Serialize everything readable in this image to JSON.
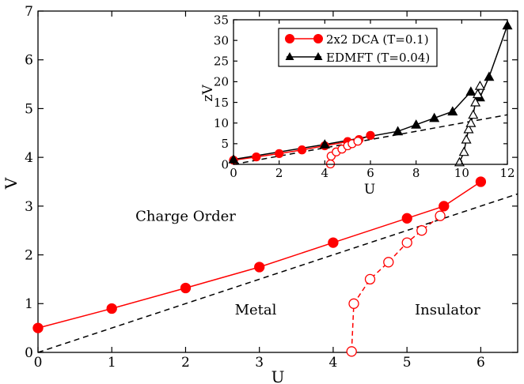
{
  "chart_data": [
    {
      "id": "main",
      "type": "line",
      "title": "",
      "xlabel": "U",
      "ylabel": "V",
      "xlim": [
        0,
        6.5
      ],
      "ylim": [
        0,
        7
      ],
      "xticks": [
        0,
        1,
        2,
        3,
        4,
        5,
        6
      ],
      "yticks": [
        0,
        1,
        2,
        3,
        4,
        5,
        6,
        7
      ],
      "grid": false,
      "series": [
        {
          "style": "red-solid-filled-circles",
          "color": "#ff0000",
          "points": [
            [
              0,
              0.5
            ],
            [
              1,
              0.9
            ],
            [
              2,
              1.32
            ],
            [
              3,
              1.75
            ],
            [
              4,
              2.25
            ],
            [
              5,
              2.75
            ],
            [
              5.5,
              3.0
            ],
            [
              6,
              3.5
            ]
          ]
        },
        {
          "style": "red-dashed-open-circles",
          "color": "#ff0000",
          "points": [
            [
              4.25,
              0.02
            ],
            [
              4.28,
              1.0
            ],
            [
              4.5,
              1.5
            ],
            [
              4.75,
              1.85
            ],
            [
              5.0,
              2.25
            ],
            [
              5.2,
              2.5
            ],
            [
              5.45,
              2.8
            ]
          ]
        },
        {
          "style": "black-dashed-line",
          "color": "#000000",
          "points": [
            [
              0,
              0
            ],
            [
              6.5,
              3.25
            ]
          ]
        }
      ],
      "annotations": [
        {
          "text": "Charge Order",
          "x": 2.0,
          "y": 2.7
        },
        {
          "text": "Metal",
          "x": 2.95,
          "y": 0.78
        },
        {
          "text": "Insulator",
          "x": 5.55,
          "y": 0.78
        }
      ]
    },
    {
      "id": "inset",
      "type": "line",
      "xlabel": "U",
      "ylabel": "zV",
      "xlim": [
        0,
        12
      ],
      "ylim": [
        0,
        35
      ],
      "xticks": [
        0,
        2,
        4,
        6,
        8,
        10,
        12
      ],
      "yticks": [
        0,
        5,
        10,
        15,
        20,
        25,
        30,
        35
      ],
      "grid": false,
      "legend": {
        "position": "top-left",
        "entries": [
          "2x2 DCA (T=0.1)",
          "EDMFT (T=0.04)"
        ]
      },
      "series": [
        {
          "name": "2x2 DCA (T=0.1)",
          "style": "red-solid-filled-circles",
          "color": "#ff0000",
          "points": [
            [
              0,
              1.0
            ],
            [
              1,
              1.8
            ],
            [
              2,
              2.6
            ],
            [
              3,
              3.5
            ],
            [
              4,
              4.5
            ],
            [
              5,
              5.5
            ],
            [
              5.5,
              6.0
            ],
            [
              6,
              7.0
            ]
          ]
        },
        {
          "style": "red-dashed-open-circles",
          "color": "#ff0000",
          "points": [
            [
              4.25,
              0.1
            ],
            [
              4.28,
              2.0
            ],
            [
              4.5,
              3.0
            ],
            [
              4.75,
              3.7
            ],
            [
              5.0,
              4.5
            ],
            [
              5.2,
              5.0
            ],
            [
              5.45,
              5.6
            ]
          ]
        },
        {
          "name": "EDMFT (T=0.04)",
          "style": "black-solid-filled-triangles",
          "color": "#000000",
          "points": [
            [
              0,
              1.2
            ],
            [
              4,
              4.8
            ],
            [
              7.2,
              8.0
            ],
            [
              8,
              9.6
            ],
            [
              8.8,
              11.2
            ],
            [
              9.6,
              12.8
            ],
            [
              10.4,
              17.6
            ],
            [
              10.8,
              16.2
            ],
            [
              11.2,
              21.2
            ],
            [
              12,
              33.6
            ]
          ]
        },
        {
          "style": "black-solid-open-triangles",
          "color": "#000000",
          "points": [
            [
              9.9,
              0.5
            ],
            [
              10.1,
              3.0
            ],
            [
              10.2,
              6.0
            ],
            [
              10.3,
              8.5
            ],
            [
              10.4,
              10.0
            ],
            [
              10.5,
              12.0
            ],
            [
              10.6,
              15.0
            ],
            [
              10.7,
              17.0
            ],
            [
              10.8,
              19.0
            ]
          ]
        },
        {
          "style": "black-dashed-line",
          "color": "#000000",
          "points": [
            [
              0,
              0
            ],
            [
              12,
              12
            ]
          ]
        }
      ]
    }
  ]
}
